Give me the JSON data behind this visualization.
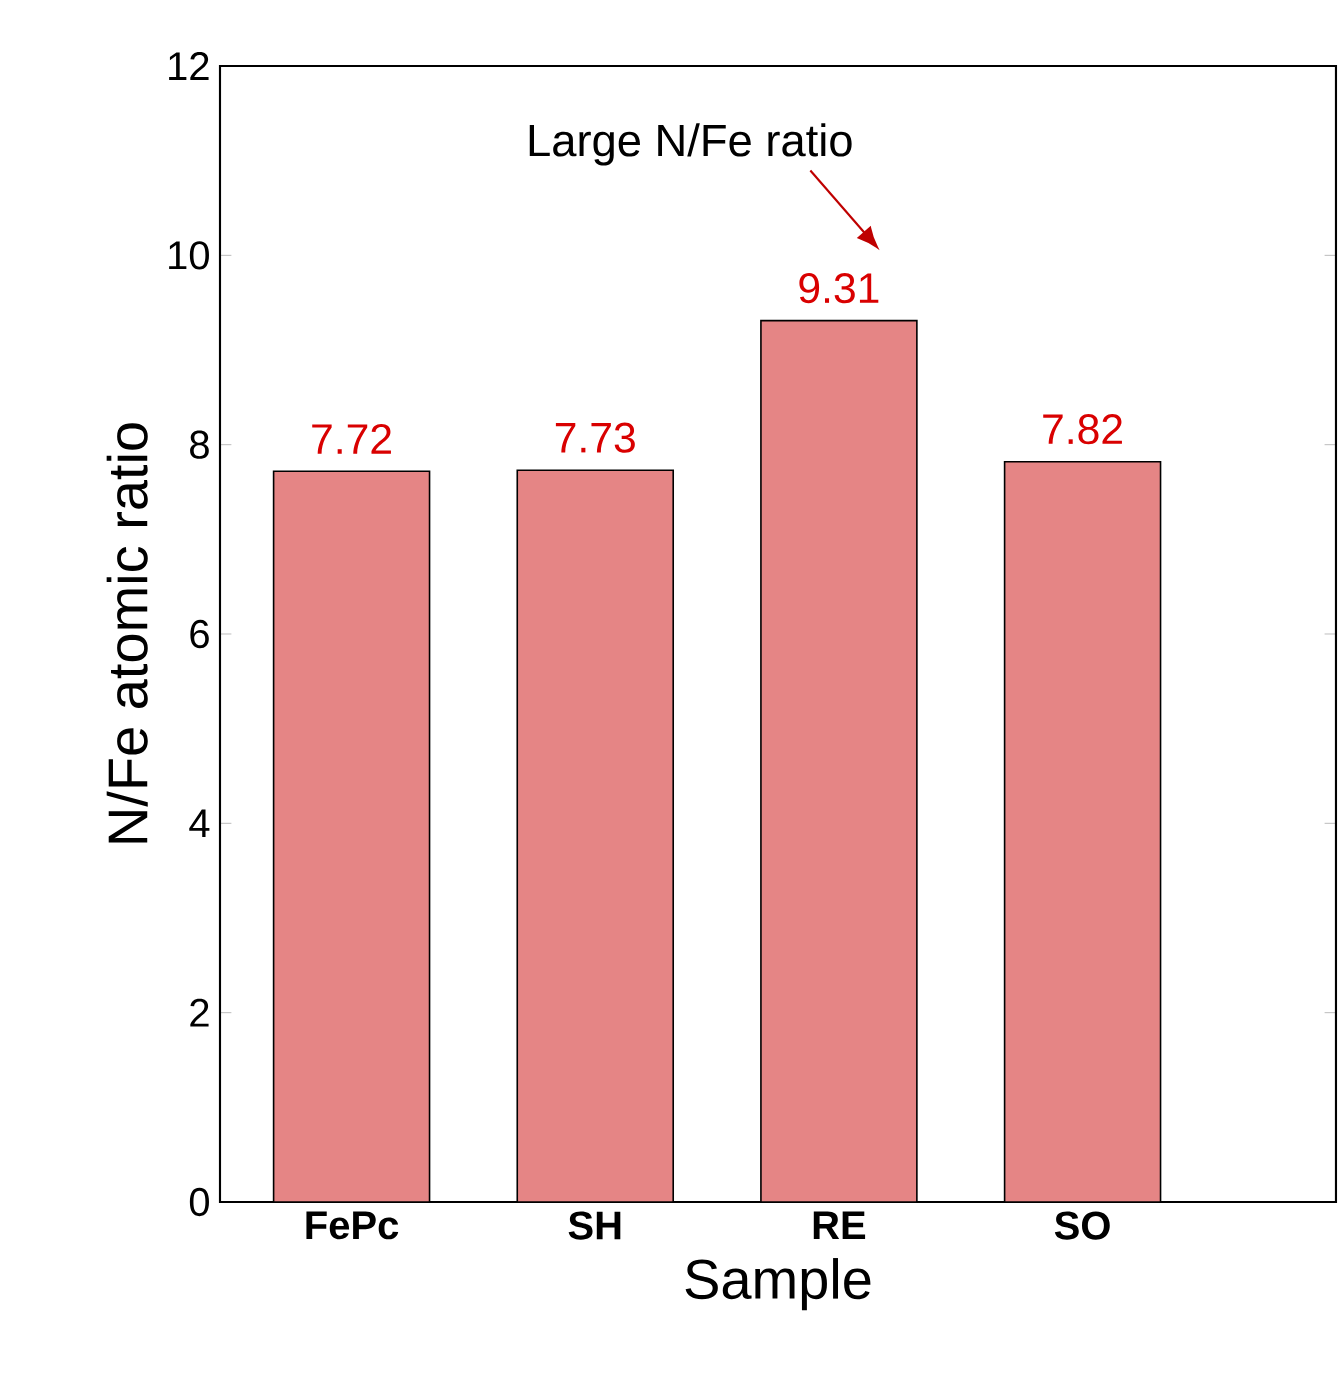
{
  "chart_data": {
    "type": "bar",
    "xlabel": "Sample",
    "ylabel": "N/Fe atomic ratio",
    "categories": [
      "FePc",
      "SH",
      "RE",
      "SO"
    ],
    "values": [
      7.72,
      7.73,
      9.31,
      7.82
    ],
    "color": "#e58585",
    "ylim": [
      0,
      12
    ],
    "yticks": [
      0,
      2,
      4,
      6,
      8,
      10,
      12
    ],
    "data_labels": true,
    "annotations": [
      "Large N/Fe ratio"
    ]
  }
}
